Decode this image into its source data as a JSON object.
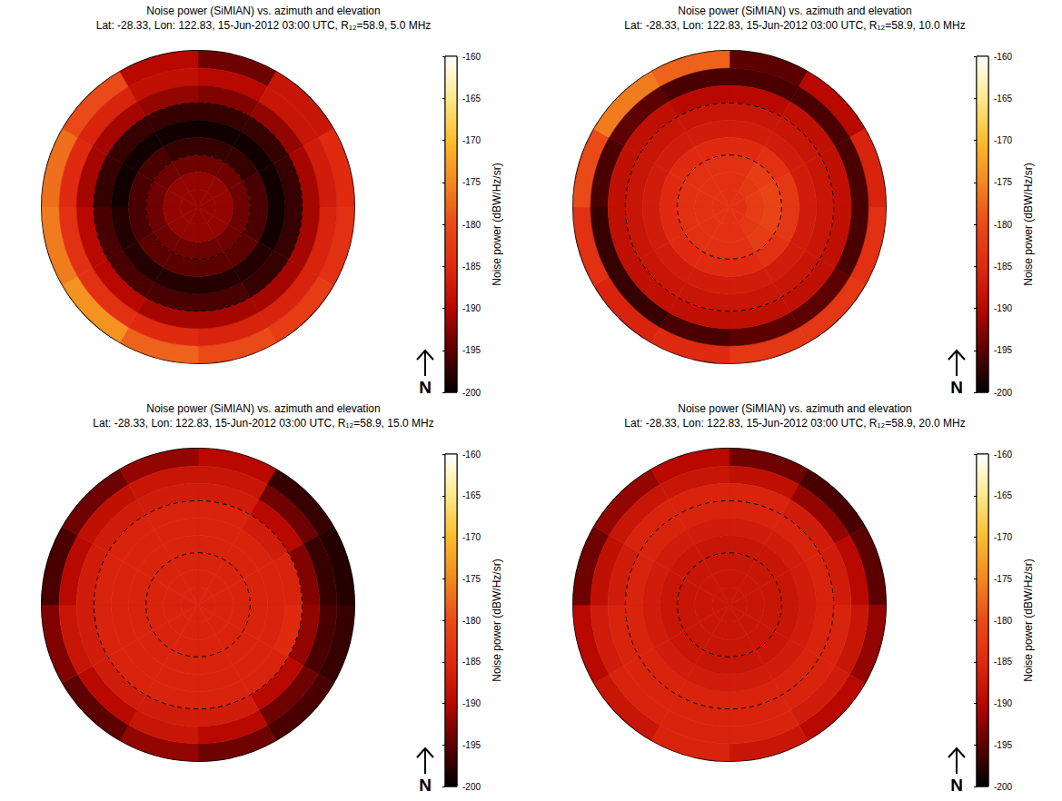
{
  "chart_data": [
    {
      "type": "polar_heatmap",
      "title": "Noise power (SiMIAN) vs. azimuth and elevation",
      "subtitle": "Lat: -28.33, Lon: 122.83, 15-Jun-2012 03:00 UTC, R₁₂=58.9, 5.0 MHz",
      "north_label": "N",
      "colorbar_label": "Noise power (dBW/Hz/sr)",
      "colorbar_lim": [
        -200,
        -160
      ],
      "colorbar_ticks": [
        -200,
        -195,
        -190,
        -185,
        -180,
        -175,
        -170,
        -165,
        -160
      ],
      "elevation_lim": [
        0,
        90
      ],
      "azimuth_lim": [
        0,
        360
      ],
      "rings": [
        30,
        60
      ],
      "elevation_bins": [
        0,
        10,
        20,
        30,
        40,
        50,
        60,
        70,
        80,
        90
      ],
      "azimuth_bins": [
        0,
        30,
        60,
        90,
        120,
        150,
        180,
        210,
        240,
        270,
        300,
        330,
        360
      ],
      "cells": [
        [
          -194,
          -188,
          -185,
          -184,
          -182,
          -180,
          -178,
          -174,
          -176,
          -177,
          -180,
          -190
        ],
        [
          -190,
          -188,
          -187,
          -186,
          -186,
          -186,
          -185,
          -184,
          -184,
          -185,
          -186,
          -189
        ],
        [
          -193,
          -192,
          -191,
          -191,
          -191,
          -191,
          -191,
          -190,
          -190,
          -191,
          -191,
          -192
        ],
        [
          -197,
          -197,
          -197,
          -197,
          -197,
          -196,
          -196,
          -196,
          -196,
          -197,
          -197,
          -197
        ],
        [
          -199,
          -199,
          -199,
          -199,
          -198,
          -198,
          -198,
          -198,
          -198,
          -199,
          -199,
          -199
        ],
        [
          -197,
          -197,
          -196,
          -196,
          -195,
          -195,
          -195,
          -195,
          -196,
          -196,
          -196,
          -197
        ],
        [
          -194,
          -194,
          -194,
          -194,
          -194,
          -194,
          -194,
          -194,
          -194,
          -194,
          -194,
          -194
        ],
        [
          -192,
          -192,
          -192,
          -192,
          -192,
          -192,
          -192,
          -192,
          -192,
          -192,
          -192,
          -192
        ],
        [
          -192,
          -192,
          -192,
          -192,
          -192,
          -192,
          -192,
          -192,
          -192,
          -192,
          -192,
          -192
        ]
      ]
    },
    {
      "type": "polar_heatmap",
      "title": "Noise power (SiMIAN) vs. azimuth and elevation",
      "subtitle": "Lat: -28.33, Lon: 122.83, 15-Jun-2012 03:00 UTC, R₁₂=58.9, 10.0 MHz",
      "north_label": "N",
      "colorbar_label": "Noise power (dBW/Hz/sr)",
      "colorbar_lim": [
        -200,
        -160
      ],
      "colorbar_ticks": [
        -200,
        -195,
        -190,
        -185,
        -180,
        -175,
        -170,
        -165,
        -160
      ],
      "elevation_lim": [
        0,
        90
      ],
      "azimuth_lim": [
        0,
        360
      ],
      "rings": [
        30,
        60
      ],
      "elevation_bins": [
        0,
        10,
        20,
        30,
        40,
        50,
        60,
        70,
        80,
        90
      ],
      "azimuth_bins": [
        0,
        30,
        60,
        90,
        120,
        150,
        180,
        210,
        240,
        270,
        300,
        330,
        360
      ],
      "cells": [
        [
          -195,
          -190,
          -186,
          -184,
          -183,
          -183,
          -185,
          -186,
          -184,
          -180,
          -176,
          -178
        ],
        [
          -196,
          -196,
          -196,
          -196,
          -195,
          -195,
          -196,
          -197,
          -197,
          -196,
          -195,
          -196
        ],
        [
          -190,
          -189,
          -189,
          -189,
          -189,
          -189,
          -189,
          -189,
          -189,
          -189,
          -189,
          -190
        ],
        [
          -188,
          -188,
          -188,
          -188,
          -188,
          -188,
          -188,
          -188,
          -188,
          -188,
          -188,
          -188
        ],
        [
          -187,
          -187,
          -187,
          -187,
          -187,
          -187,
          -187,
          -187,
          -187,
          -187,
          -187,
          -187
        ],
        [
          -185,
          -184,
          -183,
          -183,
          -184,
          -185,
          -185,
          -185,
          -185,
          -185,
          -185,
          -185
        ],
        [
          -184,
          -182,
          -181,
          -181,
          -182,
          -184,
          -184,
          -184,
          -184,
          -184,
          -184,
          -184
        ],
        [
          -184,
          -183,
          -182,
          -182,
          -183,
          -184,
          -184,
          -184,
          -184,
          -184,
          -184,
          -184
        ],
        [
          -184,
          -184,
          -184,
          -184,
          -184,
          -184,
          -184,
          -184,
          -184,
          -184,
          -184,
          -184
        ]
      ]
    },
    {
      "type": "polar_heatmap",
      "title": "Noise power (SiMIAN) vs. azimuth and elevation",
      "subtitle": "Lat: -28.33, Lon: 122.83, 15-Jun-2012 03:00 UTC, R₁₂=58.9, 15.0 MHz",
      "north_label": "N",
      "colorbar_label": "Noise power (dBW/Hz/sr)",
      "colorbar_lim": [
        -200,
        -160
      ],
      "colorbar_ticks": [
        -200,
        -195,
        -190,
        -185,
        -180,
        -175,
        -170,
        -165,
        -160
      ],
      "elevation_lim": [
        0,
        90
      ],
      "azimuth_lim": [
        0,
        360
      ],
      "rings": [
        30,
        60
      ],
      "elevation_bins": [
        0,
        10,
        20,
        30,
        40,
        50,
        60,
        70,
        80,
        90
      ],
      "azimuth_bins": [
        0,
        30,
        60,
        90,
        120,
        150,
        180,
        210,
        240,
        270,
        300,
        330,
        360
      ],
      "cells": [
        [
          -190,
          -197,
          -198,
          -197,
          -196,
          -194,
          -192,
          -195,
          -193,
          -196,
          -194,
          -192
        ],
        [
          -188,
          -194,
          -197,
          -196,
          -194,
          -190,
          -188,
          -190,
          -188,
          -190,
          -189,
          -188
        ],
        [
          -187,
          -190,
          -193,
          -192,
          -190,
          -187,
          -187,
          -187,
          -187,
          -187,
          -187,
          -187
        ],
        [
          -186,
          -187,
          -186,
          -185,
          -186,
          -186,
          -186,
          -186,
          -186,
          -186,
          -186,
          -186
        ],
        [
          -186,
          -186,
          -186,
          -186,
          -186,
          -186,
          -186,
          -186,
          -186,
          -186,
          -186,
          -186
        ],
        [
          -186,
          -186,
          -186,
          -186,
          -186,
          -186,
          -186,
          -186,
          -186,
          -186,
          -186,
          -186
        ],
        [
          -186,
          -186,
          -186,
          -186,
          -186,
          -186,
          -186,
          -186,
          -186,
          -186,
          -186,
          -186
        ],
        [
          -186,
          -186,
          -186,
          -186,
          -186,
          -186,
          -186,
          -186,
          -186,
          -186,
          -186,
          -186
        ],
        [
          -186,
          -186,
          -186,
          -186,
          -186,
          -186,
          -186,
          -186,
          -186,
          -186,
          -186,
          -186
        ]
      ]
    },
    {
      "type": "polar_heatmap",
      "title": "Noise power (SiMIAN) vs. azimuth and elevation",
      "subtitle": "Lat: -28.33, Lon: 122.83, 15-Jun-2012 03:00 UTC, R₁₂=58.9, 20.0 MHz",
      "north_label": "N",
      "colorbar_label": "Noise power (dBW/Hz/sr)",
      "colorbar_lim": [
        -200,
        -160
      ],
      "colorbar_ticks": [
        -200,
        -195,
        -190,
        -185,
        -180,
        -175,
        -170,
        -165,
        -160
      ],
      "elevation_lim": [
        0,
        90
      ],
      "azimuth_lim": [
        0,
        360
      ],
      "rings": [
        30,
        60
      ],
      "elevation_bins": [
        0,
        10,
        20,
        30,
        40,
        50,
        60,
        70,
        80,
        90
      ],
      "azimuth_bins": [
        0,
        30,
        60,
        90,
        120,
        150,
        180,
        210,
        240,
        270,
        300,
        330,
        360
      ],
      "cells": [
        [
          -194,
          -196,
          -195,
          -192,
          -190,
          -188,
          -186,
          -188,
          -190,
          -194,
          -192,
          -190
        ],
        [
          -189,
          -192,
          -190,
          -188,
          -187,
          -186,
          -186,
          -186,
          -187,
          -189,
          -188,
          -188
        ],
        [
          -186,
          -187,
          -187,
          -186,
          -186,
          -186,
          -186,
          -186,
          -186,
          -187,
          -186,
          -186
        ],
        [
          -186,
          -186,
          -186,
          -186,
          -186,
          -186,
          -186,
          -186,
          -186,
          -186,
          -186,
          -186
        ],
        [
          -187,
          -187,
          -187,
          -187,
          -187,
          -187,
          -187,
          -187,
          -187,
          -187,
          -187,
          -187
        ],
        [
          -188,
          -188,
          -188,
          -188,
          -188,
          -188,
          -188,
          -188,
          -188,
          -188,
          -188,
          -188
        ],
        [
          -188,
          -188,
          -188,
          -188,
          -188,
          -188,
          -188,
          -188,
          -188,
          -188,
          -188,
          -188
        ],
        [
          -188,
          -188,
          -188,
          -188,
          -188,
          -188,
          -188,
          -188,
          -188,
          -188,
          -188,
          -188
        ],
        [
          -188,
          -188,
          -188,
          -188,
          -188,
          -188,
          -188,
          -188,
          -188,
          -188,
          -188,
          -188
        ]
      ]
    }
  ]
}
